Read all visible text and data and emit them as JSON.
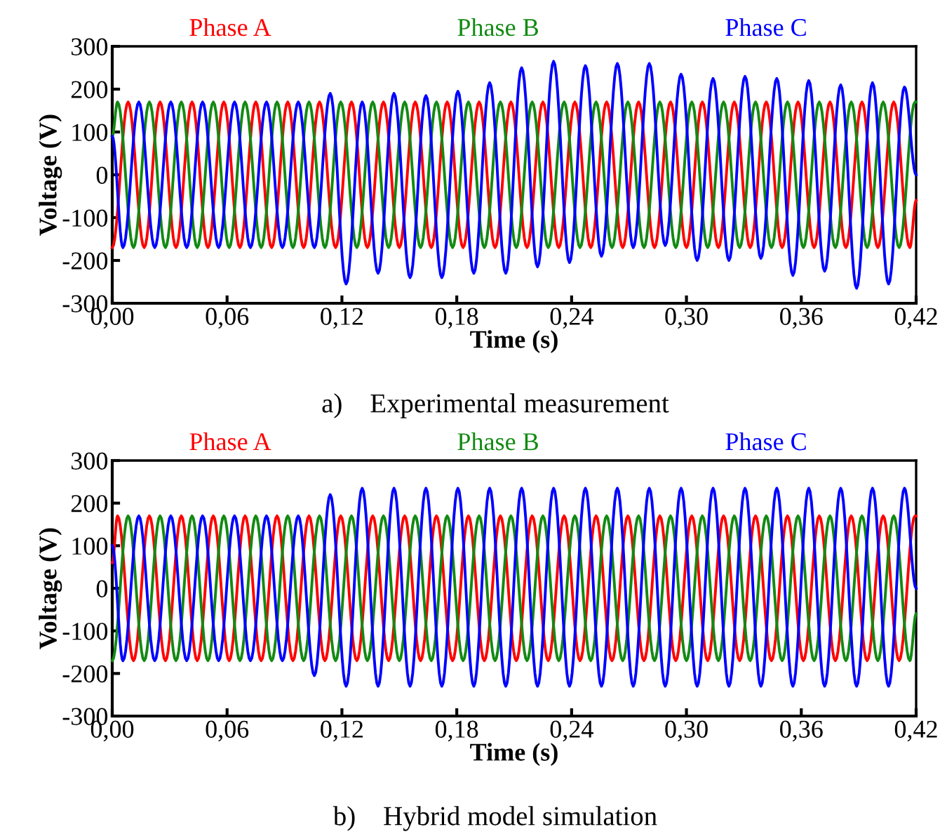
{
  "chart_data": [
    {
      "type": "line",
      "title": "a)    Experimental measurement",
      "xlabel": "Time (s)",
      "ylabel": "Voltage (V)",
      "xlim": [
        0,
        0.42
      ],
      "ylim": [
        -300,
        300
      ],
      "xticks": [
        {
          "value": 0,
          "label": "0,00"
        },
        {
          "value": 0.06,
          "label": "0,06"
        },
        {
          "value": 0.12,
          "label": "0,12"
        },
        {
          "value": 0.18,
          "label": "0,18"
        },
        {
          "value": 0.24,
          "label": "0,24"
        },
        {
          "value": 0.3,
          "label": "0,30"
        },
        {
          "value": 0.36,
          "label": "0,36"
        },
        {
          "value": 0.42,
          "label": "0,42"
        }
      ],
      "yticks": [
        -300,
        -200,
        -100,
        0,
        100,
        200,
        300
      ],
      "grid": false,
      "legend": "top",
      "marker": "none",
      "line_style": "solid",
      "series": [
        {
          "name": "Phase A",
          "color": "#ff0000",
          "x": [
            0,
            0.0083,
            0.0167,
            0.025,
            0.0333,
            0.0417,
            0.05,
            0.0583,
            0.0667,
            0.075,
            0.0833,
            0.0917,
            0.1,
            0.1083,
            0.1167,
            0.125,
            0.1333,
            0.1417,
            0.15,
            0.1583,
            0.1667,
            0.175,
            0.1833,
            0.1917,
            0.2,
            0.2083,
            0.2167,
            0.225,
            0.2333,
            0.2417,
            0.25,
            0.2583,
            0.2667,
            0.275,
            0.2833,
            0.2917,
            0.3,
            0.3083,
            0.3167,
            0.325,
            0.3333,
            0.3417,
            0.35,
            0.3583,
            0.3667,
            0.375,
            0.3833,
            0.3917,
            0.4,
            0.4083,
            0.4167,
            0.42
          ],
          "values": [
            -170,
            170,
            -170,
            170,
            -170,
            170,
            -170,
            170,
            -170,
            170,
            -170,
            170,
            -170,
            170,
            -170,
            170,
            -170,
            170,
            -170,
            170,
            -170,
            170,
            -170,
            170,
            -170,
            170,
            -170,
            170,
            -170,
            170,
            -170,
            170,
            -170,
            170,
            -170,
            170,
            -170,
            170,
            -170,
            170,
            -170,
            170,
            -170,
            170,
            -170,
            170,
            -170,
            170,
            -170,
            170,
            -170,
            -60
          ]
        },
        {
          "name": "Phase B",
          "color": "#128a12",
          "x": [
            0,
            0.0028,
            0.0111,
            0.0194,
            0.0278,
            0.0361,
            0.0444,
            0.0528,
            0.0611,
            0.0694,
            0.0778,
            0.0861,
            0.0944,
            0.1028,
            0.1111,
            0.1194,
            0.1278,
            0.1361,
            0.1444,
            0.1528,
            0.1611,
            0.1694,
            0.1778,
            0.1861,
            0.1944,
            0.2028,
            0.2111,
            0.2194,
            0.2278,
            0.2361,
            0.2444,
            0.2528,
            0.2611,
            0.2694,
            0.2778,
            0.2861,
            0.2944,
            0.3028,
            0.3111,
            0.3194,
            0.3278,
            0.3361,
            0.3444,
            0.3528,
            0.3611,
            0.3694,
            0.3778,
            0.3861,
            0.3944,
            0.4028,
            0.4111,
            0.4194,
            0.42
          ],
          "values": [
            90,
            170,
            -170,
            170,
            -170,
            170,
            -170,
            170,
            -170,
            170,
            -170,
            170,
            -170,
            170,
            -170,
            170,
            -170,
            170,
            -170,
            170,
            -170,
            170,
            -170,
            170,
            -170,
            170,
            -170,
            170,
            -170,
            170,
            -170,
            170,
            -170,
            170,
            -170,
            170,
            -170,
            170,
            -170,
            170,
            -170,
            170,
            -170,
            170,
            -170,
            170,
            -170,
            170,
            -170,
            170,
            -170,
            170,
            170
          ]
        },
        {
          "name": "Phase C",
          "color": "#0000ff",
          "x": [
            0,
            0.0056,
            0.0139,
            0.0222,
            0.0306,
            0.0389,
            0.0472,
            0.0556,
            0.0639,
            0.0722,
            0.0806,
            0.0889,
            0.0972,
            0.1056,
            0.1139,
            0.1222,
            0.1306,
            0.1389,
            0.1472,
            0.1556,
            0.1639,
            0.1722,
            0.1806,
            0.1889,
            0.1972,
            0.2056,
            0.2139,
            0.2222,
            0.2306,
            0.2389,
            0.2472,
            0.2556,
            0.2639,
            0.2722,
            0.2806,
            0.2889,
            0.2972,
            0.3056,
            0.3139,
            0.3222,
            0.3306,
            0.3389,
            0.3472,
            0.3556,
            0.3639,
            0.3722,
            0.3806,
            0.3889,
            0.3972,
            0.4056,
            0.4139,
            0.42
          ],
          "values": [
            90,
            -170,
            170,
            -170,
            170,
            -170,
            170,
            -170,
            170,
            -170,
            170,
            -170,
            170,
            -170,
            190,
            -255,
            170,
            -230,
            190,
            -240,
            185,
            -240,
            195,
            -230,
            215,
            -230,
            250,
            -215,
            265,
            -205,
            255,
            -190,
            260,
            -170,
            260,
            -165,
            235,
            -200,
            225,
            -200,
            230,
            -195,
            225,
            -235,
            220,
            -225,
            210,
            -265,
            215,
            -255,
            205,
            0
          ]
        }
      ]
    },
    {
      "type": "line",
      "title": "b)    Hybrid model simulation",
      "xlabel": "Time (s)",
      "ylabel": "Voltage (V)",
      "xlim": [
        0,
        0.42
      ],
      "ylim": [
        -300,
        300
      ],
      "xticks": [
        {
          "value": 0,
          "label": "0,00"
        },
        {
          "value": 0.06,
          "label": "0,06"
        },
        {
          "value": 0.12,
          "label": "0,12"
        },
        {
          "value": 0.18,
          "label": "0,18"
        },
        {
          "value": 0.24,
          "label": "0,24"
        },
        {
          "value": 0.3,
          "label": "0,30"
        },
        {
          "value": 0.36,
          "label": "0,36"
        },
        {
          "value": 0.42,
          "label": "0,42"
        }
      ],
      "yticks": [
        -300,
        -200,
        -100,
        0,
        100,
        200,
        300
      ],
      "grid": false,
      "legend": "top",
      "marker": "none",
      "line_style": "solid",
      "series": [
        {
          "name": "Phase A",
          "color": "#ff0000",
          "x": [
            0,
            0.0028,
            0.0111,
            0.0194,
            0.0278,
            0.0361,
            0.0444,
            0.0528,
            0.0611,
            0.0694,
            0.0778,
            0.0861,
            0.0944,
            0.1028,
            0.1111,
            0.1194,
            0.1278,
            0.1361,
            0.1444,
            0.1528,
            0.1611,
            0.1694,
            0.1778,
            0.1861,
            0.1944,
            0.2028,
            0.2111,
            0.2194,
            0.2278,
            0.2361,
            0.2444,
            0.2528,
            0.2611,
            0.2694,
            0.2778,
            0.2861,
            0.2944,
            0.3028,
            0.3111,
            0.3194,
            0.3278,
            0.3361,
            0.3444,
            0.3528,
            0.3611,
            0.3694,
            0.3778,
            0.3861,
            0.3944,
            0.4028,
            0.4111,
            0.4194,
            0.42
          ],
          "values": [
            60,
            170,
            -170,
            170,
            -170,
            170,
            -170,
            170,
            -170,
            170,
            -170,
            170,
            -170,
            170,
            -170,
            170,
            -170,
            170,
            -170,
            170,
            -170,
            170,
            -170,
            170,
            -170,
            170,
            -170,
            170,
            -170,
            170,
            -170,
            170,
            -170,
            170,
            -170,
            170,
            -170,
            170,
            -170,
            170,
            -170,
            170,
            -170,
            170,
            -170,
            170,
            -170,
            170,
            -170,
            170,
            -170,
            170,
            170
          ]
        },
        {
          "name": "Phase B",
          "color": "#128a12",
          "x": [
            0,
            0.0083,
            0.0167,
            0.025,
            0.0333,
            0.0417,
            0.05,
            0.0583,
            0.0667,
            0.075,
            0.0833,
            0.0917,
            0.1,
            0.1083,
            0.1167,
            0.125,
            0.1333,
            0.1417,
            0.15,
            0.1583,
            0.1667,
            0.175,
            0.1833,
            0.1917,
            0.2,
            0.2083,
            0.2167,
            0.225,
            0.2333,
            0.2417,
            0.25,
            0.2583,
            0.2667,
            0.275,
            0.2833,
            0.2917,
            0.3,
            0.3083,
            0.3167,
            0.325,
            0.3333,
            0.3417,
            0.35,
            0.3583,
            0.3667,
            0.375,
            0.3833,
            0.3917,
            0.4,
            0.4083,
            0.4167,
            0.42
          ],
          "values": [
            -170,
            170,
            -170,
            170,
            -170,
            170,
            -170,
            170,
            -170,
            170,
            -170,
            170,
            -170,
            170,
            -170,
            170,
            -170,
            170,
            -170,
            170,
            -170,
            170,
            -170,
            170,
            -170,
            170,
            -170,
            170,
            -170,
            170,
            -170,
            170,
            -170,
            170,
            -170,
            170,
            -170,
            170,
            -170,
            170,
            -170,
            170,
            -170,
            170,
            -170,
            170,
            -170,
            170,
            -170,
            170,
            -170,
            -60
          ]
        },
        {
          "name": "Phase C",
          "color": "#0000ff",
          "x": [
            0,
            0.0056,
            0.0139,
            0.0222,
            0.0306,
            0.0389,
            0.0472,
            0.0556,
            0.0639,
            0.0722,
            0.0806,
            0.0889,
            0.0972,
            0.1056,
            0.1139,
            0.1222,
            0.1306,
            0.1389,
            0.1472,
            0.1556,
            0.1639,
            0.1722,
            0.1806,
            0.1889,
            0.1972,
            0.2056,
            0.2139,
            0.2222,
            0.2306,
            0.2389,
            0.2472,
            0.2556,
            0.2639,
            0.2722,
            0.2806,
            0.2889,
            0.2972,
            0.3056,
            0.3139,
            0.3222,
            0.3306,
            0.3389,
            0.3472,
            0.3556,
            0.3639,
            0.3722,
            0.3806,
            0.3889,
            0.3972,
            0.4056,
            0.4139,
            0.42
          ],
          "values": [
            100,
            -170,
            170,
            -170,
            170,
            -170,
            170,
            -170,
            170,
            -170,
            170,
            -170,
            170,
            -205,
            220,
            -230,
            235,
            -230,
            235,
            -230,
            235,
            -230,
            235,
            -230,
            235,
            -230,
            235,
            -230,
            235,
            -230,
            235,
            -230,
            235,
            -230,
            235,
            -230,
            235,
            -230,
            235,
            -230,
            235,
            -230,
            235,
            -230,
            235,
            -230,
            235,
            -230,
            235,
            -230,
            235,
            0
          ]
        }
      ]
    }
  ]
}
